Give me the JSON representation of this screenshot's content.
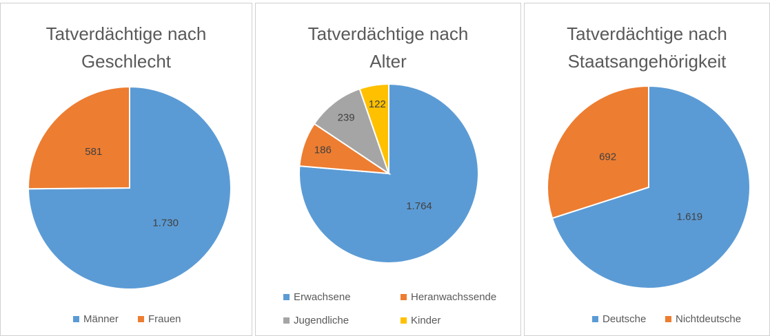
{
  "chart_data": [
    {
      "type": "pie",
      "title": "Tatverdächtige nach Geschlecht",
      "categories": [
        "Männer",
        "Frauen"
      ],
      "values": [
        1730,
        581
      ],
      "value_labels": [
        "1.730",
        "581"
      ],
      "colors": [
        "#5b9bd5",
        "#ed7d31"
      ]
    },
    {
      "type": "pie",
      "title": "Tatverdächtige nach Alter",
      "categories": [
        "Erwachsene",
        "Heranwachssende",
        "Jugendliche",
        "Kinder"
      ],
      "values": [
        1764,
        186,
        239,
        122
      ],
      "value_labels": [
        "1.764",
        "186",
        "239",
        "122"
      ],
      "colors": [
        "#5b9bd5",
        "#ed7d31",
        "#a5a5a5",
        "#ffc000"
      ]
    },
    {
      "type": "pie",
      "title": "Tatverdächtige nach Staatsangehörigkeit",
      "categories": [
        "Deutsche",
        "Nichtdeutsche"
      ],
      "values": [
        1619,
        692
      ],
      "value_labels": [
        "1.619",
        "692"
      ],
      "colors": [
        "#5b9bd5",
        "#ed7d31"
      ]
    }
  ]
}
